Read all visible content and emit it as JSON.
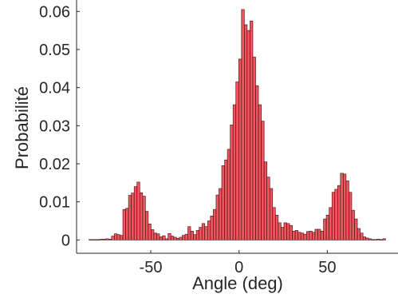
{
  "chart_data": {
    "type": "bar",
    "title": "",
    "xlabel": "Angle (deg)",
    "ylabel": "Probabilité",
    "xlim": [
      -92,
      90
    ],
    "ylim": [
      -0.0035,
      0.063
    ],
    "xticks": [
      -50,
      0,
      50
    ],
    "xtick_labels": [
      "-50",
      "0",
      "50"
    ],
    "yticks": [
      0,
      0.01,
      0.02,
      0.03,
      0.04,
      0.05,
      0.06
    ],
    "ytick_labels": [
      "0",
      "0.01",
      "0.02",
      "0.03",
      "0.04",
      "0.05",
      "0.06"
    ],
    "grid": false,
    "legend": "none",
    "bar_color": "#f0545d",
    "bin_start": -85,
    "bin_width": 1.6,
    "values": [
      0.0001,
      0.0001,
      0.0001,
      0.0001,
      0.0002,
      0.0002,
      0.0003,
      0.0002,
      0.001,
      0.0016,
      0.0014,
      0.0012,
      0.008,
      0.0083,
      0.0117,
      0.0123,
      0.014,
      0.0152,
      0.0124,
      0.0115,
      0.0075,
      0.0042,
      0.0027,
      0.0018,
      0.0016,
      0.0008,
      0.0011,
      0.0003,
      0.0017,
      0.001,
      0.0007,
      0.0004,
      0.0007,
      0.0012,
      0.0015,
      0.0035,
      0.0023,
      0.0014,
      0.0025,
      0.0033,
      0.0043,
      0.0035,
      0.005,
      0.0063,
      0.008,
      0.0118,
      0.0135,
      0.0195,
      0.021,
      0.0238,
      0.0302,
      0.0355,
      0.0415,
      0.0475,
      0.0605,
      0.0565,
      0.055,
      0.0575,
      0.048,
      0.0405,
      0.0355,
      0.0312,
      0.0205,
      0.0165,
      0.0135,
      0.0085,
      0.0065,
      0.0045,
      0.0033,
      0.0045,
      0.0043,
      0.0038,
      0.0023,
      0.0025,
      0.002,
      0.0018,
      0.0015,
      0.0022,
      0.0023,
      0.002,
      0.0028,
      0.0028,
      0.0023,
      0.0055,
      0.0065,
      0.0085,
      0.0125,
      0.0133,
      0.0143,
      0.0175,
      0.0173,
      0.0155,
      0.0125,
      0.0078,
      0.0055,
      0.003,
      0.0018,
      0.0008,
      0.0005,
      0.0003,
      0.0001,
      0.0001,
      0.0002,
      0.0001,
      0.0003
    ]
  }
}
